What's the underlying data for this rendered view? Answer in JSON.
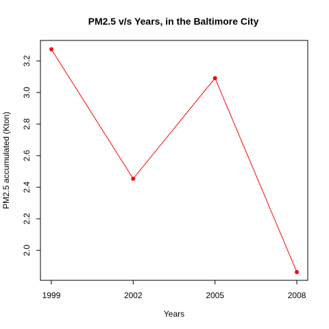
{
  "chart_data": {
    "type": "line",
    "title": "PM2.5 v/s Years, in the Baltimore City",
    "xlabel": "Years",
    "ylabel": "PM2.5 accumulated (Kton)",
    "x": [
      1999,
      2002,
      2005,
      2008
    ],
    "x_ticks": [
      "1999",
      "2002",
      "2005",
      "2008"
    ],
    "y_ticks": [
      "2.0",
      "2.2",
      "2.4",
      "2.6",
      "2.8",
      "3.0",
      "3.2"
    ],
    "y_tick_values": [
      2.0,
      2.2,
      2.4,
      2.6,
      2.8,
      3.0,
      3.2
    ],
    "xlim": [
      1998.6,
      2008.4
    ],
    "ylim": [
      1.81,
      3.33
    ],
    "series": [
      {
        "values": [
          3.274,
          2.454,
          3.091,
          1.862
        ],
        "line_color": "#ff0000",
        "point_color": "#ff0000"
      }
    ],
    "grid": false,
    "legend": "none"
  }
}
